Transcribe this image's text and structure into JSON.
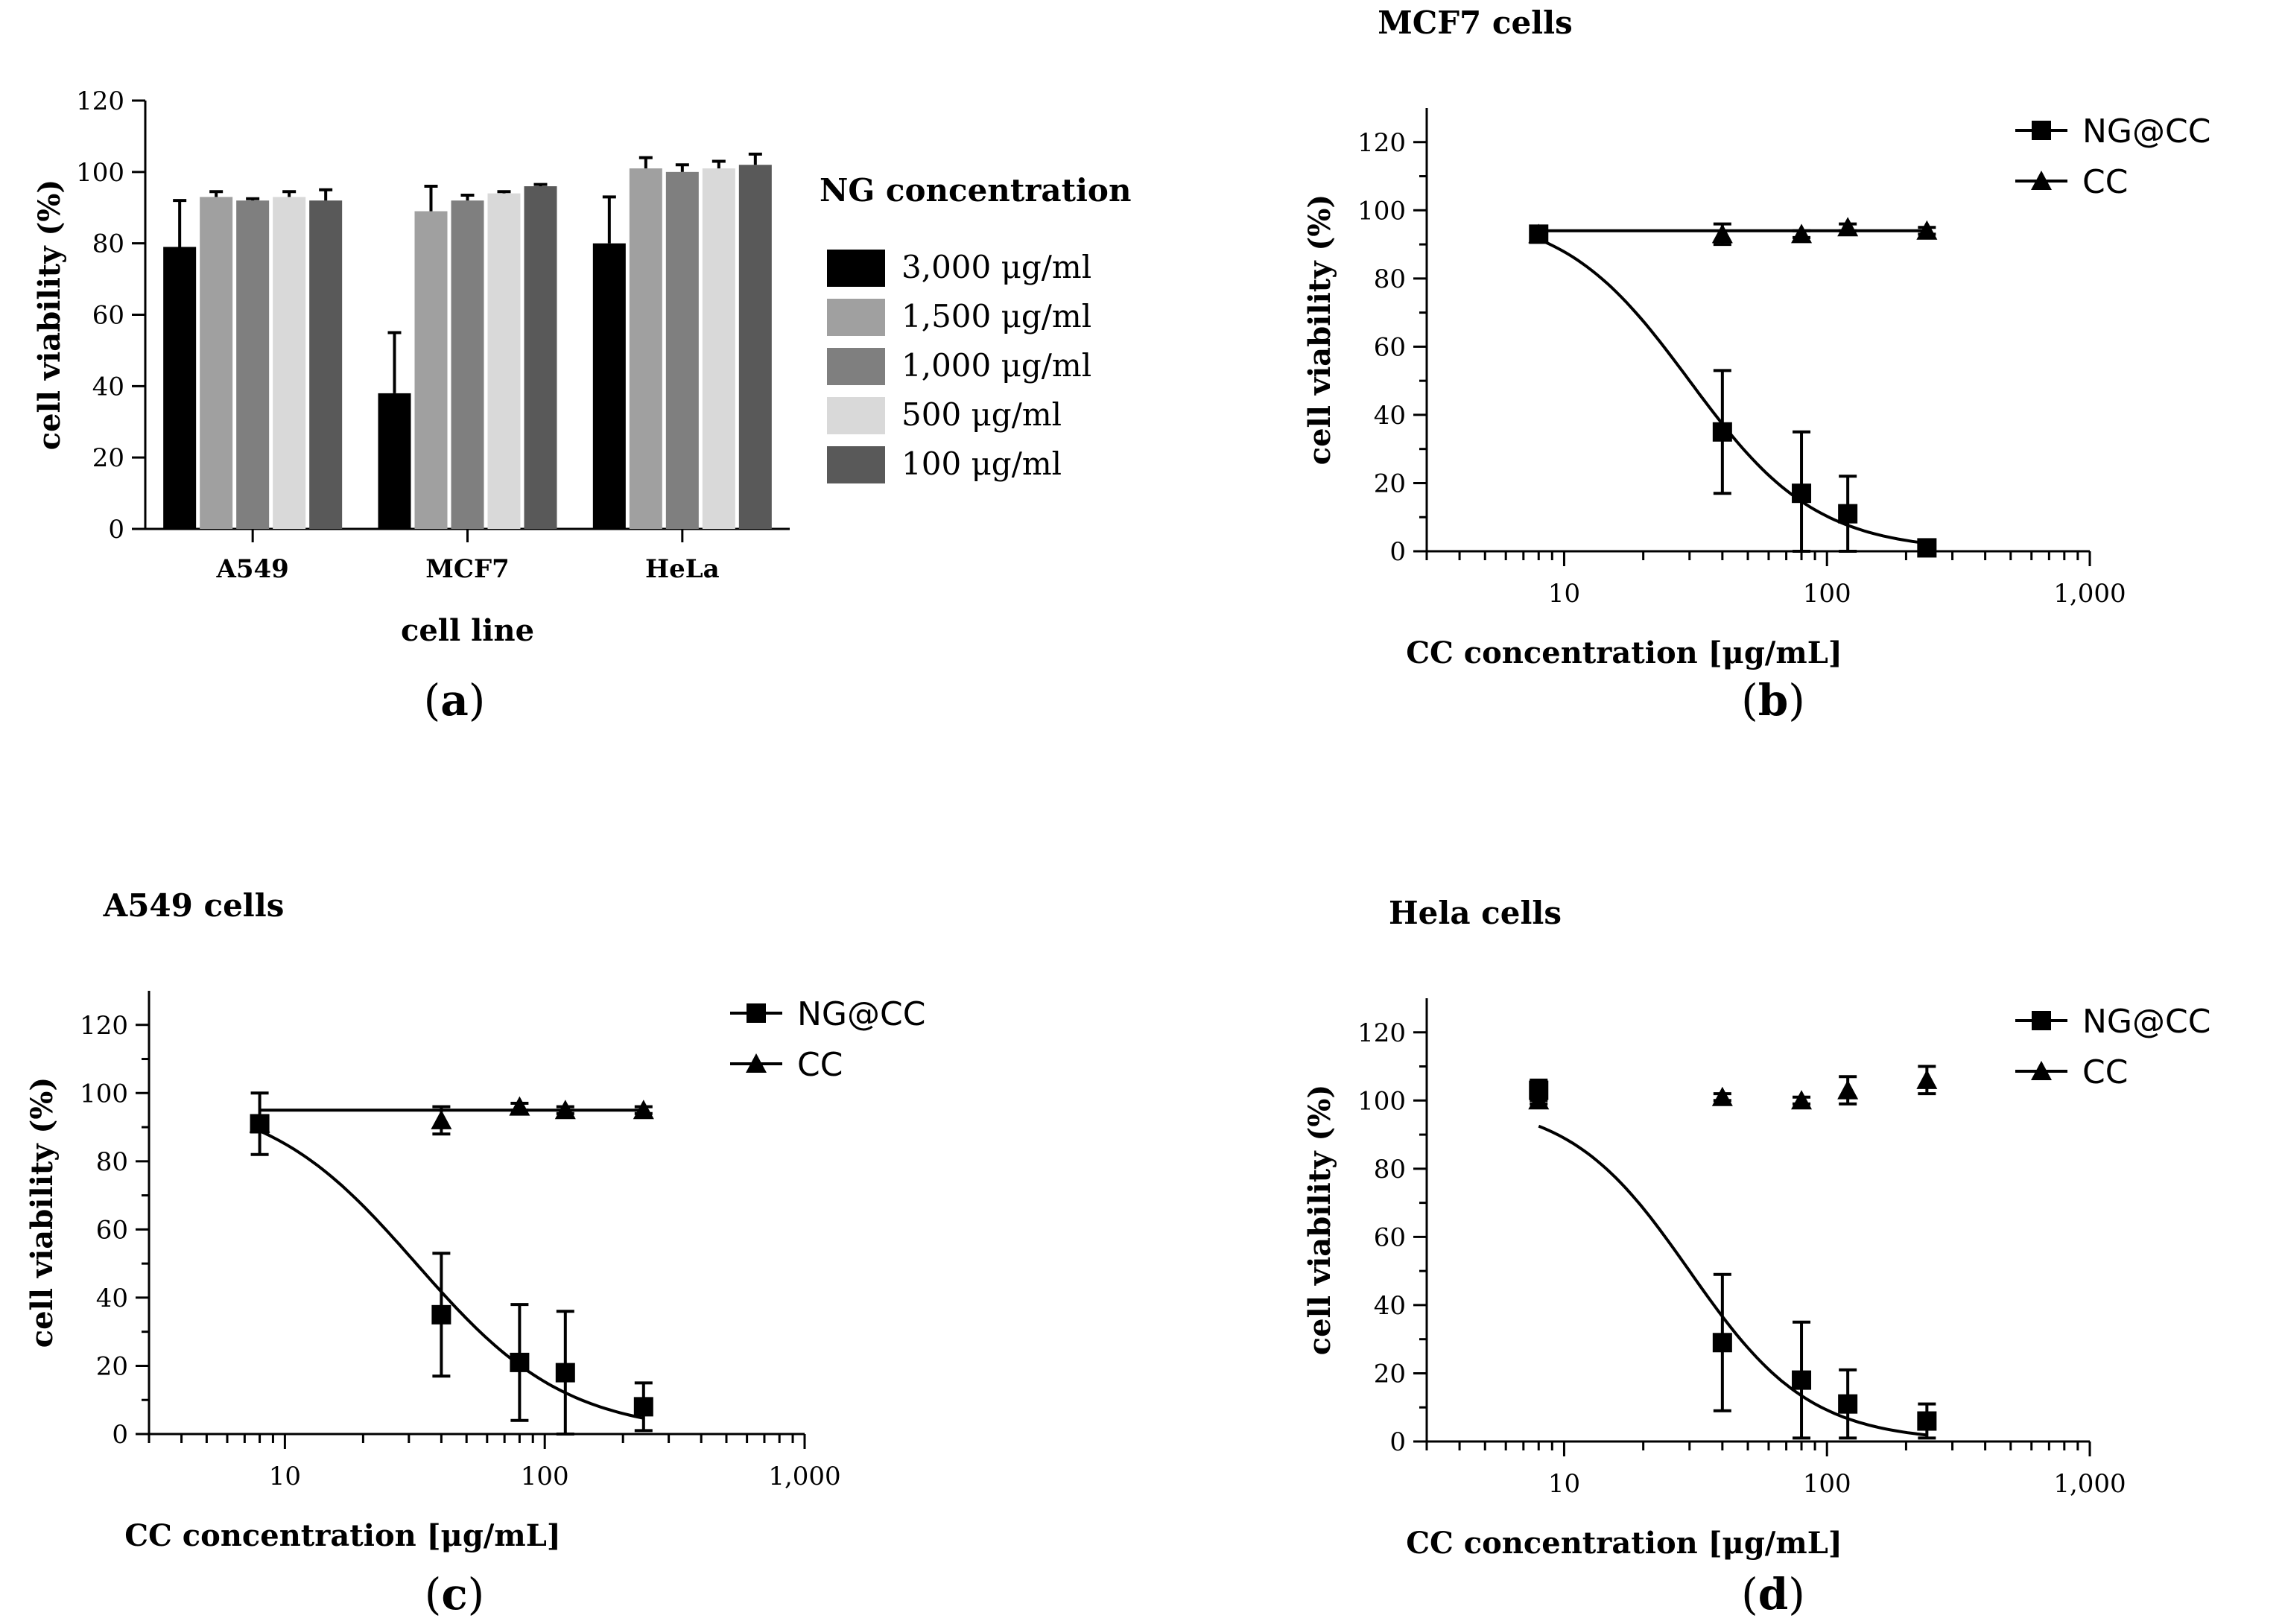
{
  "chart_data": [
    {
      "panel": "a",
      "type": "bar",
      "title": "",
      "xlabel": "cell line",
      "ylabel": "cell viability (%)",
      "ylim": [
        0,
        120
      ],
      "yticks": [
        0,
        20,
        40,
        60,
        80,
        100,
        120
      ],
      "categories": [
        "A549",
        "MCF7",
        "HeLa"
      ],
      "legend_title": "NG concentration",
      "legend_position": "right",
      "series": [
        {
          "name": "3,000 μg/ml",
          "color": "#000000",
          "values": [
            79,
            38,
            80
          ],
          "errors": [
            13,
            17,
            13
          ]
        },
        {
          "name": "1,500 μg/ml",
          "color": "#a0a0a0",
          "values": [
            93,
            89,
            101
          ],
          "errors": [
            1.5,
            7,
            3
          ]
        },
        {
          "name": "1,000 μg/ml",
          "color": "#7f7f7f",
          "values": [
            92,
            92,
            100
          ],
          "errors": [
            0.5,
            1.5,
            2
          ]
        },
        {
          "name": "500 μg/ml",
          "color": "#d9d9d9",
          "values": [
            93,
            94,
            101
          ],
          "errors": [
            1.5,
            0.5,
            2
          ]
        },
        {
          "name": "100 μg/ml",
          "color": "#595959",
          "values": [
            92,
            96,
            102
          ],
          "errors": [
            3,
            0.5,
            3
          ]
        }
      ]
    },
    {
      "panel": "b",
      "type": "scatter",
      "title": "MCF7 cells",
      "xlabel": "CC concentration [μg/mL]",
      "ylabel": "cell viability (%)",
      "xscale": "log",
      "xlim": [
        3,
        1000
      ],
      "xticks": [
        10,
        100,
        1000
      ],
      "xtick_labels": [
        "10",
        "100",
        "1,000"
      ],
      "ylim": [
        0,
        130
      ],
      "yticks": [
        0,
        20,
        40,
        60,
        80,
        100,
        120
      ],
      "legend_position": "top-right",
      "series": [
        {
          "name": "NG@CC",
          "marker": "square",
          "x": [
            8,
            40,
            80,
            120,
            240
          ],
          "y": [
            93,
            35,
            17,
            11,
            1
          ],
          "errors": [
            2,
            18,
            18,
            11,
            1
          ],
          "fit": {
            "kind": "sigmoid",
            "top": 100,
            "ic50": 30,
            "hill": 1.8,
            "from": 8,
            "to": 240
          }
        },
        {
          "name": "CC",
          "marker": "triangle",
          "x": [
            8,
            40,
            80,
            120,
            240
          ],
          "y": [
            93,
            93,
            93,
            95,
            94
          ],
          "errors": [
            1,
            3,
            1,
            1,
            1
          ],
          "fit": {
            "kind": "flat",
            "value": 94,
            "from": 8,
            "to": 240
          }
        }
      ]
    },
    {
      "panel": "c",
      "type": "scatter",
      "title": "A549 cells",
      "xlabel": "CC concentration [μg/mL]",
      "ylabel": "cell viability (%)",
      "xscale": "log",
      "xlim": [
        3,
        1000
      ],
      "xticks": [
        10,
        100,
        1000
      ],
      "xtick_labels": [
        "10",
        "100",
        "1,000"
      ],
      "ylim": [
        0,
        130
      ],
      "yticks": [
        0,
        20,
        40,
        60,
        80,
        100,
        120
      ],
      "legend_position": "top-right",
      "series": [
        {
          "name": "NG@CC",
          "marker": "square",
          "x": [
            8,
            40,
            80,
            120,
            240
          ],
          "y": [
            91,
            35,
            21,
            18,
            8
          ],
          "errors": [
            9,
            18,
            17,
            18,
            7
          ],
          "fit": {
            "kind": "sigmoid",
            "top": 100,
            "ic50": 32,
            "hill": 1.5,
            "from": 8,
            "to": 240
          }
        },
        {
          "name": "CC",
          "marker": "triangle",
          "x": [
            8,
            40,
            80,
            120,
            240
          ],
          "y": [
            91,
            92,
            96,
            95,
            95
          ],
          "errors": [
            2,
            4,
            1,
            1,
            1
          ],
          "fit": {
            "kind": "flat",
            "value": 95,
            "from": 8,
            "to": 240
          }
        }
      ]
    },
    {
      "panel": "d",
      "type": "scatter",
      "title": "Hela cells",
      "xlabel": "CC concentration [μg/mL]",
      "ylabel": "cell viability (%)",
      "xscale": "log",
      "xlim": [
        3,
        1000
      ],
      "xticks": [
        10,
        100,
        1000
      ],
      "xtick_labels": [
        "10",
        "100",
        "1,000"
      ],
      "ylim": [
        0,
        130
      ],
      "yticks": [
        0,
        20,
        40,
        60,
        80,
        100,
        120
      ],
      "legend_position": "top-right",
      "series": [
        {
          "name": "NG@CC",
          "marker": "square",
          "x": [
            8,
            40,
            80,
            120,
            240
          ],
          "y": [
            103,
            29,
            18,
            11,
            6
          ],
          "errors": [
            3,
            20,
            17,
            10,
            5
          ],
          "fit": {
            "kind": "sigmoid",
            "top": 100,
            "ic50": 30,
            "hill": 1.9,
            "from": 8,
            "to": 240
          }
        },
        {
          "name": "CC",
          "marker": "triangle",
          "x": [
            8,
            40,
            80,
            120,
            240
          ],
          "y": [
            100,
            101,
            100,
            103,
            106
          ],
          "errors": [
            1,
            1,
            1,
            4,
            4
          ],
          "fit": null
        }
      ]
    }
  ],
  "panel_labels": [
    "a",
    "b",
    "c",
    "d"
  ]
}
